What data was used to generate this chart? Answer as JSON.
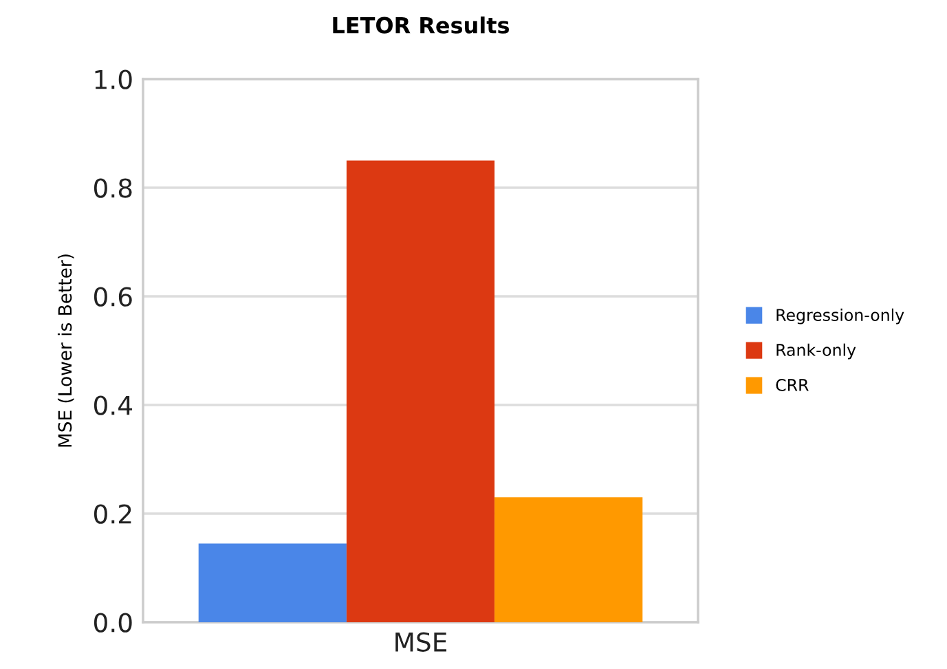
{
  "chart_data": {
    "type": "bar",
    "title": "LETOR Results",
    "ylabel": "MSE (Lower is Better)",
    "categories": [
      "MSE"
    ],
    "series": [
      {
        "name": "Regression-only",
        "color": "#4a86e8",
        "values": [
          0.145
        ]
      },
      {
        "name": "Rank-only",
        "color": "#dc3912",
        "values": [
          0.85
        ]
      },
      {
        "name": "CRR",
        "color": "#ff9900",
        "values": [
          0.23
        ]
      }
    ],
    "ylim": [
      0,
      1.0
    ],
    "yticks": [
      {
        "value": 0,
        "label": "0.0"
      },
      {
        "value": 0.2,
        "label": "0.2"
      },
      {
        "value": 0.4,
        "label": "0.4"
      },
      {
        "value": 0.6,
        "label": "0.6"
      },
      {
        "value": 0.8,
        "label": "0.8"
      },
      {
        "value": 1.0,
        "label": "1.0"
      }
    ],
    "grid": "y",
    "legend": "right"
  }
}
